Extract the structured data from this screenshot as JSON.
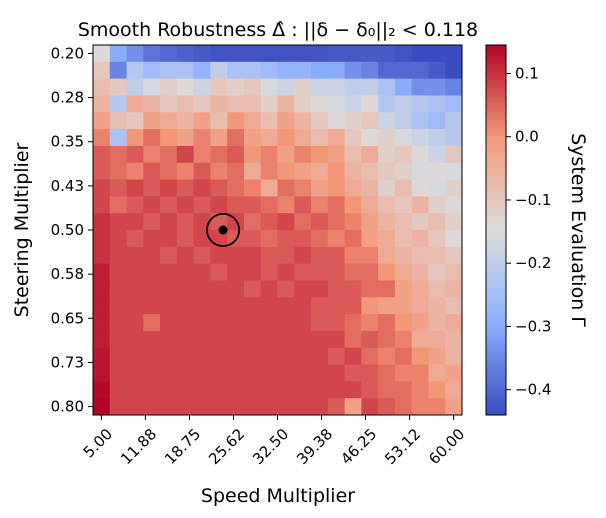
{
  "chart_data": {
    "type": "heatmap",
    "title": "Smooth Robustness Δ̂ : ||δ − δ₀||₂ < 0.118",
    "xlabel": "Speed Multiplier",
    "ylabel": "Steering Multiplier",
    "colorbar_label": "System Evaluation Γ",
    "colormap": "coolwarm",
    "x_range": [
      5.0,
      60.0
    ],
    "y_range": [
      0.2,
      0.8
    ],
    "x_tick_labels": [
      "5.00",
      "11.88",
      "18.75",
      "25.62",
      "32.50",
      "39.38",
      "46.25",
      "53.12",
      "60.00"
    ],
    "y_tick_labels": [
      "0.20",
      "0.28",
      "0.35",
      "0.43",
      "0.50",
      "0.58",
      "0.65",
      "0.73",
      "0.80"
    ],
    "colorbar_ticks": [
      "0.1",
      "0.0",
      "−0.1",
      "−0.2",
      "−0.3",
      "−0.4"
    ],
    "colorbar_tick_values": [
      0.1,
      0.0,
      -0.1,
      -0.2,
      -0.3,
      -0.4
    ],
    "color_range": [
      -0.44,
      0.145
    ],
    "grid_size": [
      22,
      22
    ],
    "nominal_point": {
      "x": 24.0,
      "y": 0.5
    },
    "robustness_radius": 0.118,
    "values": [
      [
        -0.14,
        -0.3,
        -0.34,
        -0.38,
        -0.4,
        -0.41,
        -0.42,
        -0.43,
        -0.43,
        -0.43,
        -0.43,
        -0.43,
        -0.43,
        -0.43,
        -0.42,
        -0.42,
        -0.42,
        -0.42,
        -0.43,
        -0.44,
        -0.44,
        -0.44
      ],
      [
        -0.1,
        -0.36,
        -0.22,
        -0.26,
        -0.24,
        -0.24,
        -0.28,
        -0.2,
        -0.24,
        -0.24,
        -0.26,
        -0.28,
        -0.28,
        -0.3,
        -0.3,
        -0.34,
        -0.36,
        -0.4,
        -0.4,
        -0.4,
        -0.42,
        -0.44
      ],
      [
        -0.08,
        -0.1,
        -0.2,
        -0.16,
        -0.12,
        -0.14,
        -0.18,
        -0.1,
        -0.12,
        -0.1,
        -0.16,
        -0.18,
        -0.12,
        -0.18,
        -0.18,
        -0.2,
        -0.2,
        -0.24,
        -0.3,
        -0.34,
        -0.34,
        -0.36
      ],
      [
        -0.06,
        -0.22,
        -0.04,
        -0.06,
        -0.1,
        -0.08,
        -0.1,
        -0.06,
        -0.08,
        -0.08,
        -0.12,
        -0.06,
        -0.12,
        -0.14,
        -0.16,
        -0.18,
        -0.14,
        -0.22,
        -0.2,
        -0.22,
        -0.24,
        -0.26
      ],
      [
        -0.02,
        -0.08,
        -0.1,
        -0.02,
        -0.04,
        -0.06,
        -0.02,
        -0.08,
        0.0,
        -0.04,
        -0.08,
        -0.02,
        -0.06,
        -0.1,
        -0.14,
        -0.12,
        -0.1,
        -0.18,
        -0.2,
        -0.24,
        -0.26,
        -0.22
      ],
      [
        0.02,
        -0.24,
        0.0,
        0.04,
        0.0,
        -0.02,
        0.02,
        -0.02,
        0.04,
        -0.02,
        -0.04,
        0.0,
        -0.04,
        -0.08,
        -0.04,
        -0.1,
        -0.14,
        -0.12,
        -0.16,
        -0.18,
        -0.2,
        -0.22
      ],
      [
        0.06,
        0.04,
        0.06,
        0.02,
        0.04,
        0.08,
        0.02,
        0.04,
        0.06,
        0.0,
        0.02,
        -0.02,
        0.02,
        0.0,
        -0.02,
        -0.08,
        -0.04,
        -0.12,
        -0.1,
        -0.14,
        -0.18,
        -0.1
      ],
      [
        0.06,
        0.04,
        0.02,
        0.06,
        0.04,
        0.02,
        0.06,
        0.02,
        0.04,
        -0.04,
        0.02,
        0.0,
        -0.02,
        -0.04,
        0.0,
        -0.06,
        -0.08,
        -0.1,
        -0.12,
        -0.16,
        -0.14,
        -0.16
      ],
      [
        0.08,
        0.06,
        0.08,
        0.06,
        0.08,
        0.06,
        0.08,
        0.06,
        0.04,
        0.02,
        -0.04,
        0.04,
        0.02,
        -0.02,
        0.0,
        -0.04,
        -0.06,
        -0.12,
        -0.08,
        -0.14,
        -0.16,
        -0.12
      ],
      [
        0.08,
        0.04,
        0.06,
        0.08,
        0.06,
        0.08,
        0.06,
        0.08,
        0.06,
        0.06,
        0.04,
        0.02,
        0.06,
        0.02,
        0.04,
        0.0,
        -0.04,
        -0.08,
        -0.1,
        -0.06,
        -0.12,
        -0.14
      ],
      [
        0.1,
        0.08,
        0.08,
        0.06,
        0.08,
        0.06,
        0.08,
        0.06,
        0.08,
        0.04,
        0.06,
        0.08,
        0.04,
        0.06,
        0.04,
        0.02,
        -0.02,
        -0.06,
        -0.08,
        -0.1,
        -0.08,
        -0.12
      ],
      [
        0.1,
        0.08,
        0.06,
        0.08,
        0.08,
        0.06,
        0.08,
        0.08,
        0.06,
        0.06,
        0.04,
        0.06,
        0.06,
        0.04,
        0.02,
        0.04,
        -0.02,
        -0.04,
        -0.08,
        -0.06,
        -0.1,
        -0.14
      ],
      [
        0.1,
        0.08,
        0.08,
        0.08,
        0.06,
        0.08,
        0.06,
        0.08,
        0.08,
        0.08,
        0.06,
        0.06,
        0.08,
        0.06,
        0.06,
        0.02,
        0.02,
        -0.04,
        -0.06,
        -0.08,
        -0.08,
        -0.1
      ],
      [
        0.12,
        0.08,
        0.08,
        0.08,
        0.08,
        0.08,
        0.08,
        0.06,
        0.08,
        0.08,
        0.06,
        0.08,
        0.06,
        0.06,
        0.06,
        0.04,
        0.04,
        0.0,
        -0.04,
        -0.06,
        -0.1,
        -0.08
      ],
      [
        0.12,
        0.08,
        0.08,
        0.08,
        0.08,
        0.08,
        0.08,
        0.08,
        0.08,
        0.06,
        0.08,
        0.06,
        0.08,
        0.08,
        0.06,
        0.06,
        0.04,
        0.04,
        -0.02,
        -0.04,
        -0.08,
        -0.06
      ],
      [
        0.12,
        0.08,
        0.08,
        0.08,
        0.08,
        0.08,
        0.08,
        0.08,
        0.08,
        0.08,
        0.08,
        0.08,
        0.08,
        0.06,
        0.06,
        0.06,
        0.0,
        -0.02,
        -0.02,
        -0.04,
        -0.06,
        -0.08
      ],
      [
        0.12,
        0.08,
        0.08,
        0.04,
        0.08,
        0.08,
        0.08,
        0.08,
        0.08,
        0.08,
        0.08,
        0.08,
        0.08,
        0.06,
        0.06,
        0.04,
        0.02,
        0.04,
        0.0,
        -0.02,
        -0.06,
        -0.04
      ],
      [
        0.12,
        0.08,
        0.08,
        0.08,
        0.08,
        0.08,
        0.08,
        0.08,
        0.08,
        0.08,
        0.08,
        0.08,
        0.08,
        0.08,
        0.08,
        0.04,
        0.06,
        0.04,
        0.02,
        -0.04,
        -0.04,
        -0.06
      ],
      [
        0.13,
        0.08,
        0.08,
        0.08,
        0.08,
        0.08,
        0.08,
        0.08,
        0.08,
        0.08,
        0.08,
        0.08,
        0.08,
        0.08,
        0.06,
        0.08,
        0.04,
        0.02,
        0.04,
        0.0,
        -0.02,
        -0.06
      ],
      [
        0.13,
        0.08,
        0.08,
        0.08,
        0.08,
        0.08,
        0.08,
        0.08,
        0.08,
        0.08,
        0.08,
        0.08,
        0.08,
        0.08,
        0.08,
        0.06,
        0.06,
        0.04,
        0.02,
        0.02,
        -0.04,
        -0.02
      ],
      [
        0.14,
        0.08,
        0.08,
        0.08,
        0.08,
        0.08,
        0.08,
        0.08,
        0.08,
        0.08,
        0.08,
        0.08,
        0.08,
        0.08,
        0.08,
        0.08,
        0.06,
        0.04,
        0.04,
        0.02,
        0.0,
        -0.04
      ],
      [
        0.145,
        0.08,
        0.08,
        0.08,
        0.08,
        0.08,
        0.08,
        0.08,
        0.08,
        0.08,
        0.08,
        0.08,
        0.08,
        0.08,
        0.06,
        -0.02,
        0.08,
        0.06,
        0.04,
        0.02,
        0.02,
        -0.02
      ]
    ]
  }
}
